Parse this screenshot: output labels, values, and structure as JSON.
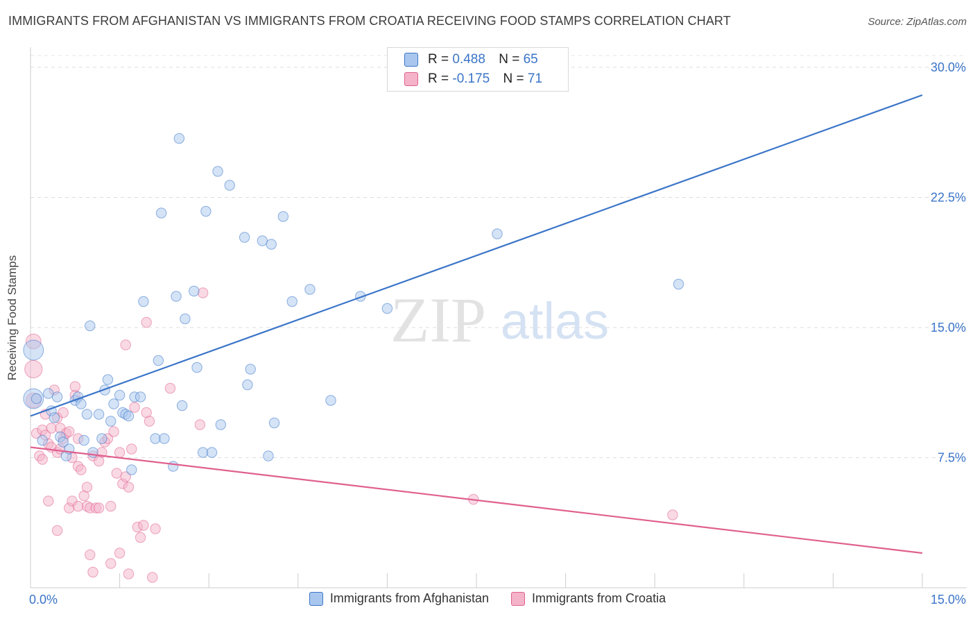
{
  "title": "IMMIGRANTS FROM AFGHANISTAN VS IMMIGRANTS FROM CROATIA RECEIVING FOOD STAMPS CORRELATION CHART",
  "source": "Source: ZipAtlas.com",
  "watermark": {
    "zip": "ZIP",
    "atlas": "atlas"
  },
  "legend_top": {
    "rows": [
      {
        "r_label": "R = ",
        "r_value": "0.488",
        "n_label": "N = ",
        "n_value": "65"
      },
      {
        "r_label": "R = ",
        "r_value": "-0.175",
        "n_label": "N = ",
        "n_value": "71"
      }
    ]
  },
  "colors": {
    "afghanistan": "#3a74c8",
    "afghanistan_fill": "#a9c7ee",
    "croatia": "#e0608e",
    "croatia_fill": "#f4b3c9",
    "value_text": "#3a74c8"
  },
  "chart_data": {
    "type": "scatter",
    "title": "IMMIGRANTS FROM AFGHANISTAN VS IMMIGRANTS FROM CROATIA RECEIVING FOOD STAMPS CORRELATION CHART",
    "xlabel": "",
    "ylabel": "Receiving Food Stamps",
    "xlim": [
      0,
      15
    ],
    "ylim": [
      0,
      30
    ],
    "x_tick_labels": [
      "0.0%",
      "15.0%"
    ],
    "y_tick_labels": [
      "7.5%",
      "15.0%",
      "22.5%",
      "30.0%"
    ],
    "y_ticks": [
      7.5,
      15,
      22.5,
      30
    ],
    "x_ticks": [
      0,
      1.5,
      3,
      4.5,
      6,
      7.5,
      9,
      10.5,
      12,
      13.5,
      15
    ],
    "grid": "horizontal dashed",
    "legend_position": "top-center",
    "series": [
      {
        "name": "Immigrants from Afghanistan",
        "color": "#3a74c8",
        "r": 0.488,
        "n": 65,
        "trend": {
          "x": [
            0,
            15
          ],
          "y": [
            9.9,
            28.4
          ]
        },
        "points": [
          [
            0.05,
            13.7,
            1.6
          ],
          [
            0.05,
            10.9,
            1.6
          ],
          [
            0.1,
            10.9,
            0.8
          ],
          [
            0.3,
            11.2,
            0.8
          ],
          [
            0.35,
            10.2,
            0.8
          ],
          [
            0.4,
            9.8,
            0.8
          ],
          [
            0.45,
            11.0,
            0.8
          ],
          [
            0.5,
            8.7,
            0.8
          ],
          [
            0.55,
            8.4,
            0.8
          ],
          [
            0.6,
            7.6,
            0.8
          ],
          [
            0.65,
            8.0,
            0.8
          ],
          [
            0.75,
            10.8,
            0.8
          ],
          [
            0.8,
            11.0,
            0.8
          ],
          [
            0.85,
            10.6,
            0.8
          ],
          [
            0.9,
            8.5,
            0.8
          ],
          [
            0.95,
            10.0,
            0.8
          ],
          [
            1.0,
            15.1,
            0.8
          ],
          [
            1.05,
            7.8,
            0.8
          ],
          [
            1.15,
            10.0,
            0.8
          ],
          [
            1.2,
            8.6,
            0.8
          ],
          [
            1.25,
            11.4,
            0.8
          ],
          [
            1.3,
            12.0,
            0.8
          ],
          [
            1.35,
            9.6,
            0.8
          ],
          [
            1.4,
            10.6,
            0.8
          ],
          [
            1.5,
            11.1,
            0.8
          ],
          [
            1.55,
            10.1,
            0.8
          ],
          [
            1.6,
            10.0,
            0.8
          ],
          [
            1.65,
            9.9,
            0.8
          ],
          [
            1.7,
            6.8,
            0.8
          ],
          [
            1.75,
            11.0,
            0.8
          ],
          [
            1.85,
            11.0,
            0.8
          ],
          [
            1.9,
            16.5,
            0.8
          ],
          [
            2.1,
            8.6,
            0.8
          ],
          [
            2.15,
            13.1,
            0.8
          ],
          [
            2.2,
            21.6,
            0.8
          ],
          [
            2.25,
            8.6,
            0.8
          ],
          [
            2.4,
            7.0,
            0.8
          ],
          [
            2.45,
            16.8,
            0.8
          ],
          [
            2.5,
            25.9,
            0.8
          ],
          [
            2.55,
            10.5,
            0.8
          ],
          [
            2.6,
            15.5,
            0.8
          ],
          [
            2.75,
            17.1,
            0.8
          ],
          [
            2.8,
            12.7,
            0.8
          ],
          [
            2.9,
            7.8,
            0.8
          ],
          [
            2.95,
            21.7,
            0.8
          ],
          [
            3.05,
            7.8,
            0.8
          ],
          [
            3.15,
            24.0,
            0.8
          ],
          [
            3.2,
            9.4,
            0.8
          ],
          [
            3.35,
            23.2,
            0.8
          ],
          [
            3.6,
            20.2,
            0.8
          ],
          [
            3.65,
            11.7,
            0.8
          ],
          [
            3.7,
            12.6,
            0.8
          ],
          [
            3.9,
            20.0,
            0.8
          ],
          [
            4.0,
            7.6,
            0.8
          ],
          [
            4.05,
            19.8,
            0.8
          ],
          [
            4.1,
            9.5,
            0.8
          ],
          [
            4.25,
            21.4,
            0.8
          ],
          [
            4.4,
            16.5,
            0.8
          ],
          [
            4.7,
            17.2,
            0.8
          ],
          [
            5.05,
            10.8,
            0.8
          ],
          [
            5.55,
            16.8,
            0.8
          ],
          [
            6.0,
            16.1,
            0.8
          ],
          [
            7.85,
            20.4,
            0.8
          ],
          [
            10.9,
            17.5,
            0.8
          ],
          [
            0.2,
            8.5,
            0.8
          ]
        ]
      },
      {
        "name": "Immigrants from Croatia",
        "color": "#e0608e",
        "r": -0.175,
        "n": 71,
        "trend": {
          "x": [
            0,
            15
          ],
          "y": [
            8.1,
            2.0
          ]
        },
        "points": [
          [
            0.05,
            14.2,
            1.2
          ],
          [
            0.05,
            12.6,
            1.4
          ],
          [
            0.05,
            10.8,
            1.2
          ],
          [
            0.1,
            8.9,
            0.8
          ],
          [
            0.15,
            7.6,
            0.8
          ],
          [
            0.2,
            9.1,
            0.8
          ],
          [
            0.2,
            7.4,
            0.8
          ],
          [
            0.25,
            10.0,
            0.8
          ],
          [
            0.3,
            8.3,
            0.8
          ],
          [
            0.35,
            8.1,
            0.8
          ],
          [
            0.35,
            9.2,
            0.8
          ],
          [
            0.4,
            11.4,
            0.8
          ],
          [
            0.45,
            9.8,
            0.8
          ],
          [
            0.45,
            7.8,
            0.8
          ],
          [
            0.5,
            8.0,
            0.8
          ],
          [
            0.5,
            9.2,
            0.8
          ],
          [
            0.55,
            8.6,
            0.8
          ],
          [
            0.6,
            8.9,
            0.8
          ],
          [
            0.65,
            9.0,
            0.8
          ],
          [
            0.7,
            7.5,
            0.8
          ],
          [
            0.75,
            11.1,
            0.8
          ],
          [
            0.75,
            11.6,
            0.8
          ],
          [
            0.8,
            8.6,
            0.8
          ],
          [
            0.8,
            7.0,
            0.8
          ],
          [
            0.85,
            6.8,
            0.8
          ],
          [
            0.9,
            5.3,
            0.8
          ],
          [
            0.95,
            4.7,
            0.8
          ],
          [
            1.0,
            4.6,
            0.8
          ],
          [
            1.05,
            7.6,
            0.8
          ],
          [
            1.1,
            4.6,
            0.8
          ],
          [
            1.15,
            4.6,
            0.8
          ],
          [
            1.2,
            7.8,
            0.8
          ],
          [
            1.25,
            8.4,
            0.8
          ],
          [
            1.3,
            8.6,
            0.8
          ],
          [
            1.35,
            4.7,
            0.8
          ],
          [
            1.4,
            9.0,
            0.8
          ],
          [
            1.45,
            6.6,
            0.8
          ],
          [
            1.5,
            7.8,
            0.8
          ],
          [
            1.55,
            6.0,
            0.8
          ],
          [
            1.6,
            6.4,
            0.8
          ],
          [
            1.65,
            5.8,
            0.8
          ],
          [
            1.7,
            8.0,
            0.8
          ],
          [
            1.75,
            10.4,
            0.8
          ],
          [
            1.8,
            3.5,
            0.8
          ],
          [
            1.85,
            2.9,
            0.8
          ],
          [
            1.9,
            3.6,
            0.8
          ],
          [
            1.95,
            10.1,
            0.8
          ],
          [
            2.0,
            9.6,
            0.8
          ],
          [
            2.05,
            0.6,
            0.8
          ],
          [
            2.1,
            3.4,
            0.8
          ],
          [
            0.3,
            5.0,
            0.8
          ],
          [
            0.45,
            3.3,
            0.8
          ],
          [
            1.0,
            1.9,
            0.8
          ],
          [
            1.05,
            0.9,
            0.8
          ],
          [
            1.35,
            1.4,
            0.8
          ],
          [
            1.5,
            2.0,
            0.8
          ],
          [
            1.65,
            0.8,
            0.8
          ],
          [
            0.65,
            4.6,
            0.8
          ],
          [
            0.7,
            5.0,
            0.8
          ],
          [
            0.8,
            4.7,
            0.8
          ],
          [
            0.95,
            5.8,
            0.8
          ],
          [
            1.15,
            7.3,
            0.8
          ],
          [
            1.95,
            15.3,
            0.8
          ],
          [
            1.6,
            14.0,
            0.8
          ],
          [
            2.35,
            11.5,
            0.8
          ],
          [
            2.85,
            9.4,
            0.8
          ],
          [
            2.9,
            17.0,
            0.8
          ],
          [
            7.45,
            5.1,
            0.8
          ],
          [
            10.8,
            4.2,
            0.8
          ],
          [
            0.55,
            10.1,
            0.8
          ],
          [
            0.25,
            8.8,
            0.8
          ]
        ]
      }
    ]
  },
  "bottom_legend": [
    "Immigrants from Afghanistan",
    "Immigrants from Croatia"
  ]
}
